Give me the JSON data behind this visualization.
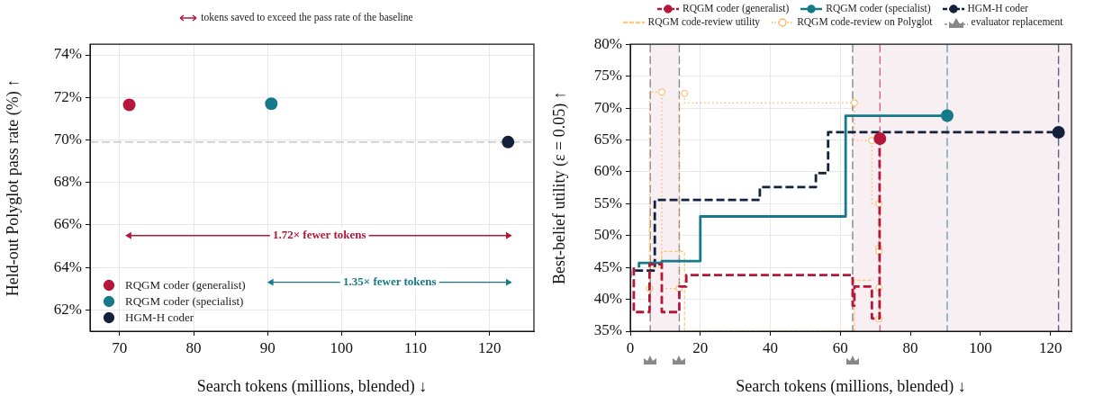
{
  "chart_data": [
    {
      "type": "scatter",
      "xlabel": "Search tokens (millions, blended) ↓",
      "ylabel": "Held-out Polyglot pass rate (%) ↑",
      "xlim": [
        66,
        126
      ],
      "xticks": [
        70,
        80,
        90,
        100,
        110,
        120
      ],
      "ylim": [
        61,
        74.5
      ],
      "yticks": [
        {
          "value": 62,
          "label": "62%"
        },
        {
          "value": 64,
          "label": "64%"
        },
        {
          "value": 66,
          "label": "66%"
        },
        {
          "value": 68,
          "label": "68%"
        },
        {
          "value": 70,
          "label": "70%"
        },
        {
          "value": 72,
          "label": "72%"
        },
        {
          "value": 74,
          "label": "74%"
        }
      ],
      "grid": true,
      "legend": "bottom left",
      "marker": "circle",
      "series": [
        {
          "name": "RQGM coder (generalist)",
          "color": "#b5173a",
          "x": [
            71.3
          ],
          "values": [
            71.65
          ]
        },
        {
          "name": "RQGM coder (specialist)",
          "color": "#16798a",
          "x": [
            90.5
          ],
          "values": [
            71.7
          ]
        },
        {
          "name": "HGM-H coder",
          "color": "#14213d",
          "x": [
            122.5
          ],
          "values": [
            69.9
          ]
        },
        {
          "type": "line",
          "color": "#b5173a",
          "marker": "triangle",
          "x": [
            71.3,
            122.5
          ],
          "values": [
            65.5,
            65.5
          ]
        },
        {
          "type": "line",
          "color": "#16798a",
          "marker": "triangle",
          "x": [
            90.5,
            122.5
          ],
          "values": [
            63.3,
            63.3
          ]
        }
      ],
      "ref_lines": [
        {
          "axis": "y",
          "value": 69.9,
          "color": "#bbbbbb",
          "line_style": "dashed"
        }
      ],
      "annotations": [
        "tokens saved to exceed the pass rate of the baseline",
        {
          "text": "1.72× fewer tokens",
          "x": 97,
          "y": 65.5
        },
        {
          "text": "1.35× fewer tokens",
          "x": 106.5,
          "y": 63.3
        }
      ]
    },
    {
      "type": "step",
      "xlabel": "Search tokens (millions, blended) ↓",
      "ylabel": "Best-belief utility (ε = 0.05) ↑",
      "xlim": [
        0,
        126
      ],
      "xticks": [
        0,
        20,
        40,
        60,
        80,
        100,
        120
      ],
      "ylim": [
        35,
        80
      ],
      "yticks": [
        {
          "value": 35,
          "label": "35%"
        },
        {
          "value": 40,
          "label": "40%"
        },
        {
          "value": 45,
          "label": "45%"
        },
        {
          "value": 50,
          "label": "50%"
        },
        {
          "value": 55,
          "label": "55%"
        },
        {
          "value": 60,
          "label": "60%"
        },
        {
          "value": 65,
          "label": "65%"
        },
        {
          "value": 70,
          "label": "70%"
        },
        {
          "value": 75,
          "label": "75%"
        },
        {
          "value": 80,
          "label": "80%"
        }
      ],
      "grid": true,
      "legend": "top",
      "series": [
        {
          "name": "RQGM coder (generalist)",
          "color": "#b5173a",
          "line_style": "dashed",
          "marker": "none",
          "x": [
            1,
            5.5,
            9,
            14,
            16,
            63.5,
            64,
            69,
            71.2,
            71.3
          ],
          "values": [
            45,
            38,
            45.5,
            38,
            42,
            43.8,
            39,
            42,
            37,
            65.2
          ]
        },
        {
          "name": "RQGM coder (specialist)",
          "color": "#16798a",
          "line_style": "solid",
          "marker": "none",
          "x": [
            2.5,
            9,
            20,
            61.5,
            90.5
          ],
          "values": [
            45,
            45.7,
            46,
            53,
            68.8
          ]
        },
        {
          "name": "HGM-H coder",
          "color": "#14213d",
          "line_style": "dashed",
          "marker": "none",
          "x": [
            0,
            7,
            37,
            53,
            56.5,
            122.3
          ],
          "values": [
            43.4,
            44.5,
            55.6,
            57.6,
            59.8,
            66.2
          ]
        },
        {
          "name": "RQGM code-review utility",
          "color": "#ffc880",
          "line_style": "dashed",
          "marker": "none",
          "x": [
            5.5,
            9,
            15.5,
            64,
            69.5
          ],
          "values": [
            53,
            45,
            47.5,
            35,
            43
          ]
        },
        {
          "name": "RQGM code-review on Polyglot",
          "color": "#ffb55c",
          "line_style": "dotted",
          "marker": "circle",
          "x": [
            5.5,
            9,
            14,
            15.5,
            64,
            69,
            71,
            71,
            71,
            71,
            71
          ],
          "values": [
            41.7,
            72.5,
            41.7,
            72.3,
            70.8,
            64.9,
            55,
            48,
            47.5,
            41.8,
            36.9
          ]
        },
        {
          "type": "scatter",
          "color": "#b5173a",
          "marker": "circle",
          "x": [
            71.3
          ],
          "values": [
            65.2
          ]
        },
        {
          "type": "scatter",
          "color": "#16798a",
          "marker": "circle",
          "x": [
            90.5
          ],
          "values": [
            68.8
          ]
        },
        {
          "type": "scatter",
          "color": "#14213d",
          "marker": "circle",
          "x": [
            122.3
          ],
          "values": [
            66.2
          ]
        }
      ],
      "ref_lines": [
        {
          "axis": "x",
          "value": 5.7,
          "label": "evaluator replacement",
          "color": "#888888",
          "line_style": "dashed"
        },
        {
          "axis": "x",
          "value": 14,
          "color": "#888888",
          "line_style": "dashed"
        },
        {
          "axis": "x",
          "value": 63.5,
          "color": "#888888",
          "line_style": "dashed"
        },
        {
          "axis": "x",
          "value": 71.3,
          "color": "#d6677e",
          "line_style": "dashed"
        },
        {
          "axis": "x",
          "value": 90.5,
          "color": "#5fa8b5",
          "line_style": "dashed"
        },
        {
          "axis": "x",
          "value": 122.3,
          "color": "#5a6480",
          "line_style": "dashed"
        }
      ],
      "bands": [
        {
          "axis": "x",
          "from": 5.7,
          "to": 14,
          "color": "#f8eff2"
        },
        {
          "axis": "x",
          "from": 63.5,
          "to": 126,
          "color": "#f8eff2"
        }
      ]
    }
  ]
}
